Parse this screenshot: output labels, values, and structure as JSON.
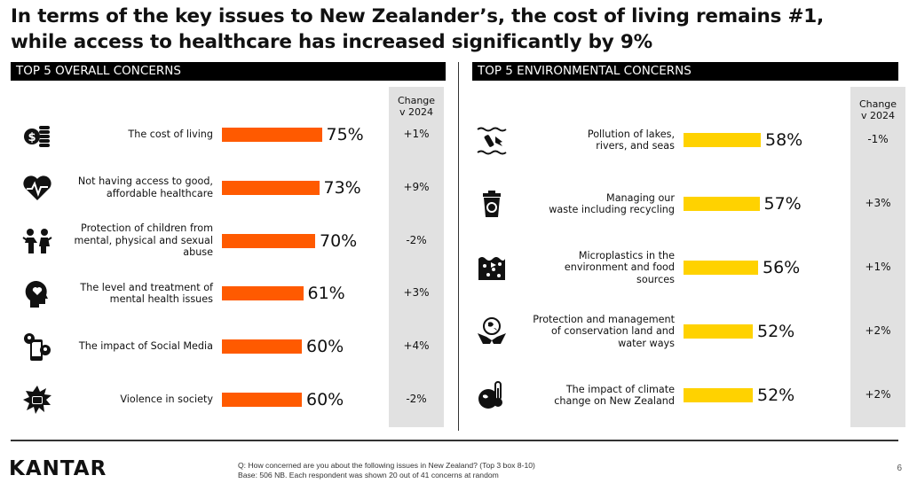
{
  "headline": {
    "line1": "In terms of the key issues to New Zealander’s, the cost of living remains #1,",
    "line2": "while access to healthcare has increased significantly by 9%"
  },
  "change_header": {
    "line1": "Change",
    "line2": "v 2024"
  },
  "colors": {
    "overall_bar": "#ff5a00",
    "environmental_bar": "#ffd200",
    "change_bg": "#e1e1e1"
  },
  "chart_data": [
    {
      "type": "bar",
      "orientation": "horizontal",
      "title": "TOP 5 OVERALL CONCERNS",
      "unit": "%",
      "xlim": [
        0,
        100
      ],
      "categories": [
        "The cost of living",
        "Not having access to good, affordable healthcare",
        "Protection of children from mental, physical and sexual abuse",
        "The level and treatment of mental health issues",
        "The impact of Social Media",
        "Violence in society"
      ],
      "label_lines": [
        [
          "The cost of living"
        ],
        [
          "Not having access to good,",
          "affordable healthcare"
        ],
        [
          "Protection of children from",
          "mental, physical and sexual",
          "abuse"
        ],
        [
          "The level and treatment of",
          "mental health issues"
        ],
        [
          "The impact of Social Media"
        ],
        [
          "Violence in society"
        ]
      ],
      "values": [
        75,
        73,
        70,
        61,
        60,
        60
      ],
      "value_labels": [
        "75%",
        "73%",
        "70%",
        "61%",
        "60%",
        "60%"
      ],
      "change_v_2024": [
        "+1%",
        "+9%",
        "-2%",
        "+3%",
        "+4%",
        "-2%"
      ],
      "icons": [
        "coins-icon",
        "heart-pulse-icon",
        "children-icon",
        "head-heart-icon",
        "social-media-phone-icon",
        "violence-fist-icon"
      ]
    },
    {
      "type": "bar",
      "orientation": "horizontal",
      "title": "TOP 5 ENVIRONMENTAL CONCERNS",
      "unit": "%",
      "xlim": [
        0,
        100
      ],
      "categories": [
        "Pollution of lakes, rivers, and seas",
        "Managing our waste including recycling",
        "Microplastics in the environment and food sources",
        "Protection and management of conservation land and water ways",
        "The impact of climate change on New Zealand"
      ],
      "label_lines": [
        [
          "Pollution of lakes,",
          "rivers, and seas"
        ],
        [
          "Managing our",
          "waste including recycling"
        ],
        [
          "Microplastics in the",
          "environment and food",
          "sources"
        ],
        [
          "Protection and management",
          "of conservation land and",
          "water ways"
        ],
        [
          "The impact of climate",
          "change on New Zealand"
        ]
      ],
      "values": [
        58,
        57,
        56,
        52,
        52
      ],
      "value_labels": [
        "58%",
        "57%",
        "56%",
        "52%",
        "52%"
      ],
      "change_v_2024": [
        "-1%",
        "+3%",
        "+1%",
        "+2%",
        "+2%"
      ],
      "icons": [
        "water-pollution-icon",
        "recycling-bin-icon",
        "microplastics-icon",
        "conservation-hands-icon",
        "climate-thermometer-icon"
      ]
    }
  ],
  "footer": {
    "logo": "KANTAR",
    "question": "Q: How concerned are you about the following issues in New Zealand? (Top 3 box 8-10)",
    "base": "Base: 506 NB. Each respondent was shown 20 out of 41 concerns at random",
    "page_number": "6"
  }
}
